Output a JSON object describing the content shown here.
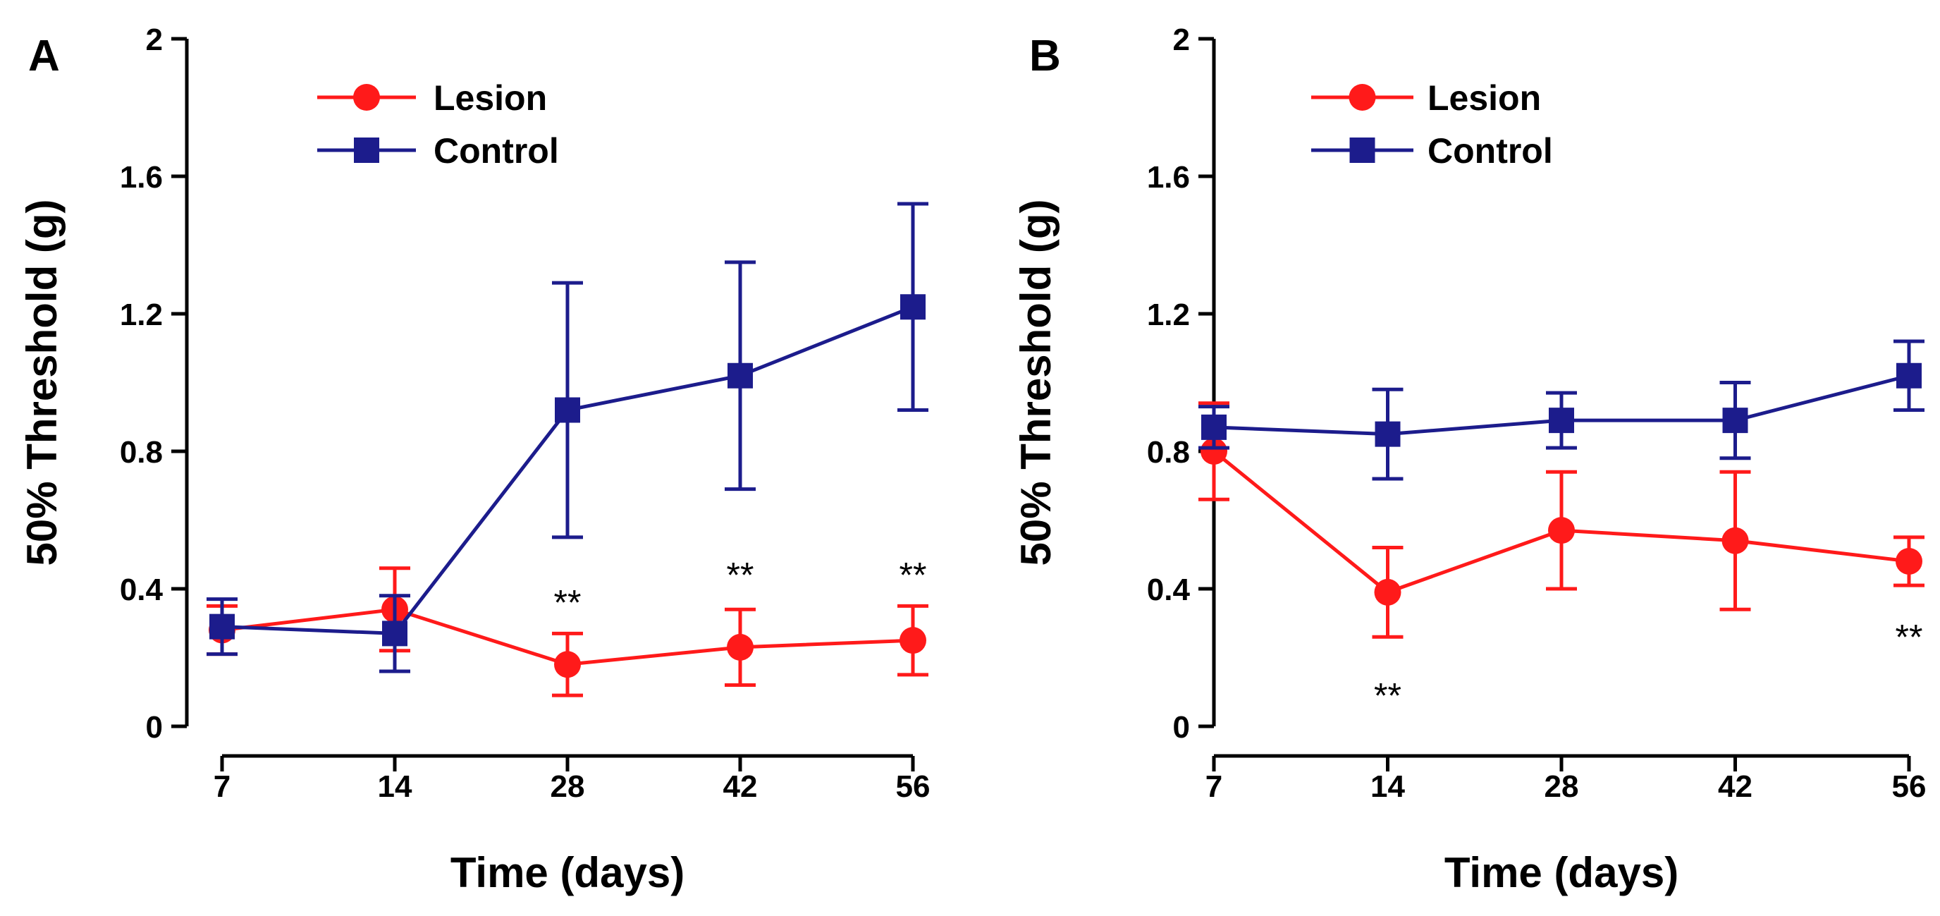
{
  "chart_data": [
    {
      "type": "line",
      "panel": "A",
      "xlabel": "Time (days)",
      "ylabel": "50% Threshold (g)",
      "categories": [
        "7",
        "14",
        "28",
        "42",
        "56"
      ],
      "yticks": [
        "0",
        "0.4",
        "0.8",
        "1.2",
        "1.6",
        "2"
      ],
      "ylim": [
        0,
        2
      ],
      "legend_position": "top-left",
      "series": [
        {
          "name": "Lesion",
          "color": "#ff1a1a",
          "marker": "circle",
          "values": [
            0.28,
            0.34,
            0.18,
            0.23,
            0.25
          ],
          "errors": [
            0.07,
            0.12,
            0.09,
            0.11,
            0.1
          ]
        },
        {
          "name": "Control",
          "color": "#1c1c8c",
          "marker": "square",
          "values": [
            0.29,
            0.27,
            0.92,
            1.02,
            1.22
          ],
          "errors": [
            0.08,
            0.11,
            0.37,
            0.33,
            0.3
          ]
        }
      ],
      "annotations": [
        {
          "x": "28",
          "y": 0.37,
          "text": "**"
        },
        {
          "x": "42",
          "y": 0.45,
          "text": "**"
        },
        {
          "x": "56",
          "y": 0.45,
          "text": "**"
        }
      ]
    },
    {
      "type": "line",
      "panel": "B",
      "xlabel": "Time (days)",
      "ylabel": "50% Threshold (g)",
      "categories": [
        "7",
        "14",
        "28",
        "42",
        "56"
      ],
      "yticks": [
        "0",
        "0.4",
        "0.8",
        "1.2",
        "1.6",
        "2"
      ],
      "ylim": [
        0,
        2
      ],
      "legend_position": "top-left",
      "series": [
        {
          "name": "Lesion",
          "color": "#ff1a1a",
          "marker": "circle",
          "values": [
            0.8,
            0.39,
            0.57,
            0.54,
            0.48
          ],
          "errors": [
            0.14,
            0.13,
            0.17,
            0.2,
            0.07
          ]
        },
        {
          "name": "Control",
          "color": "#1c1c8c",
          "marker": "square",
          "values": [
            0.87,
            0.85,
            0.89,
            0.89,
            1.02
          ],
          "errors": [
            0.06,
            0.13,
            0.08,
            0.11,
            0.1
          ]
        }
      ],
      "annotations": [
        {
          "x": "14",
          "y": 0.1,
          "text": "**"
        },
        {
          "x": "56",
          "y": 0.27,
          "text": "**"
        }
      ]
    }
  ]
}
